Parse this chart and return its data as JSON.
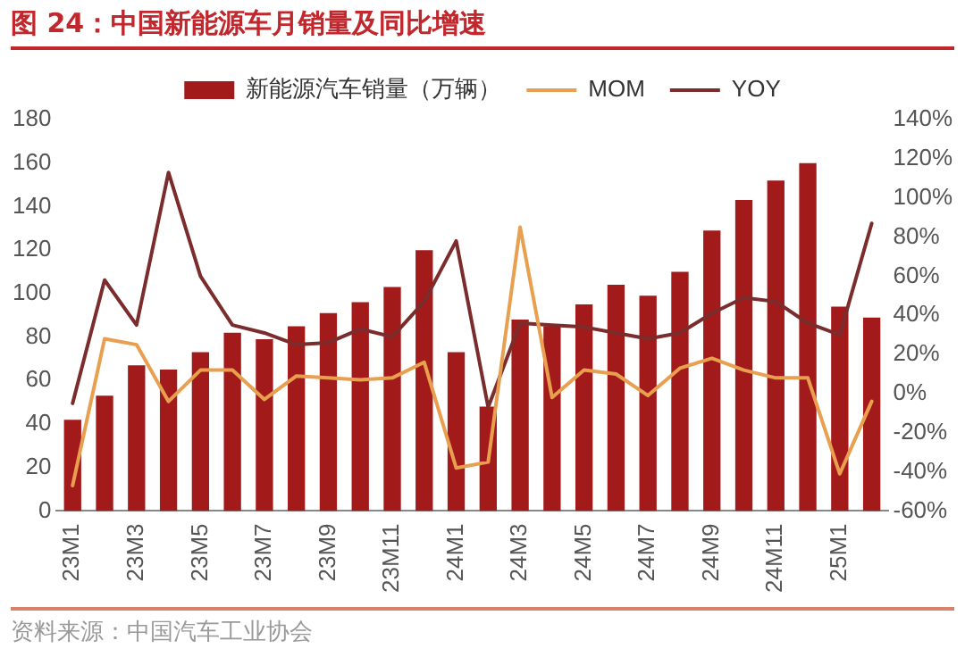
{
  "chart_data": {
    "type": "bar",
    "title": "图 24：中国新能源车月销量及同比增速",
    "categories": [
      "23M1",
      null,
      "23M3",
      null,
      "23M5",
      null,
      "23M7",
      null,
      "23M9",
      null,
      "23M11",
      null,
      "24M1",
      null,
      "24M3",
      null,
      "24M5",
      null,
      "24M7",
      null,
      "24M9",
      null,
      "24M11",
      null,
      "25M1",
      null
    ],
    "series": [
      {
        "name": "新能源汽车销量（万辆）",
        "color": "#a31a1a",
        "values": [
          42,
          53,
          67,
          65,
          73,
          82,
          79,
          85,
          91,
          96,
          103,
          120,
          73,
          48,
          88,
          85,
          95,
          104,
          99,
          110,
          129,
          143,
          152,
          160,
          94,
          89
        ]
      },
      {
        "name": "MOM",
        "type": "line",
        "axis": "y2",
        "color": "#e8a050",
        "values": [
          -47,
          28,
          25,
          -4,
          12,
          12,
          -3,
          9,
          8,
          7,
          8,
          16,
          -38,
          -35,
          85,
          -2,
          12,
          10,
          -1,
          13,
          18,
          12,
          8,
          8,
          -41,
          -4
        ]
      },
      {
        "name": "YOY",
        "type": "line",
        "axis": "y2",
        "color": "#7b2d2d",
        "values": [
          -5,
          58,
          35,
          113,
          60,
          35,
          31,
          25,
          26,
          33,
          29,
          47,
          78,
          -7,
          36,
          35,
          34,
          31,
          28,
          31,
          41,
          49,
          47,
          36,
          30,
          87
        ]
      }
    ],
    "ylim": [
      0,
      180
    ],
    "yticks": [
      0,
      20,
      40,
      60,
      80,
      100,
      120,
      140,
      160,
      180
    ],
    "y2lim": [
      -60,
      140
    ],
    "y2ticks": [
      {
        "value": -60,
        "label": "-60%"
      },
      {
        "value": -40,
        "label": "-40%"
      },
      {
        "value": -20,
        "label": "-20%"
      },
      {
        "value": 0,
        "label": "0%"
      },
      {
        "value": 20,
        "label": "20%"
      },
      {
        "value": 40,
        "label": "40%"
      },
      {
        "value": 60,
        "label": "60%"
      },
      {
        "value": 80,
        "label": "80%"
      },
      {
        "value": 100,
        "label": "100%"
      },
      {
        "value": 120,
        "label": "120%"
      },
      {
        "value": 140,
        "label": "140%"
      }
    ],
    "grid": false,
    "legend": "top",
    "marker": "none",
    "line_style": "solid",
    "annotations": [
      "资料来源：中国汽车工业协会"
    ]
  }
}
